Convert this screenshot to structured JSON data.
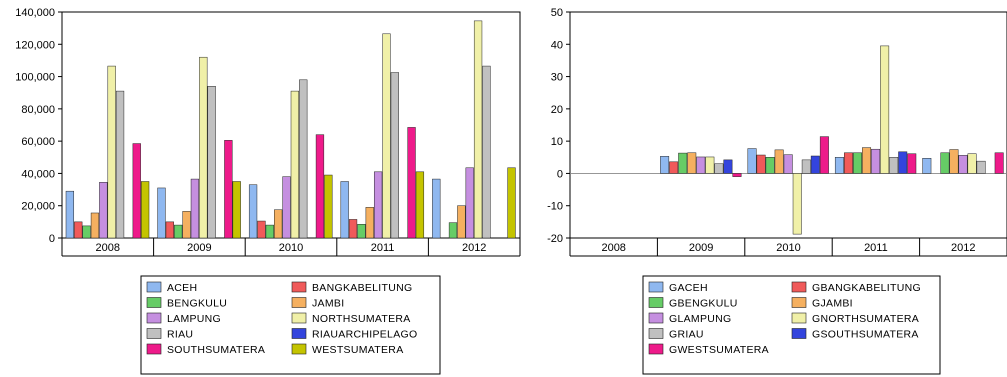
{
  "chart_data": [
    {
      "type": "bar",
      "categories": [
        "2008",
        "2009",
        "2010",
        "2011",
        "2012"
      ],
      "ylim": [
        0,
        140000
      ],
      "yticks": [
        0,
        20000,
        40000,
        60000,
        80000,
        100000,
        120000,
        140000
      ],
      "ytick_labels": [
        "0",
        "20,000",
        "40,000",
        "60,000",
        "80,000",
        "100,000",
        "120,000",
        "140,000"
      ],
      "grid": false,
      "legend_position": "bottom",
      "series": [
        {
          "name": "ACEH",
          "color": "#8fb8f0",
          "values": [
            29000,
            31000,
            33000,
            35000,
            36500
          ]
        },
        {
          "name": "BANGKABELITUNG",
          "color": "#f05a5a",
          "values": [
            10000,
            10000,
            10500,
            11500,
            null
          ]
        },
        {
          "name": "BENGKULU",
          "color": "#66cc66",
          "values": [
            7500,
            8000,
            8000,
            8500,
            9500
          ]
        },
        {
          "name": "JAMBI",
          "color": "#f5b060",
          "values": [
            15500,
            16500,
            17500,
            19000,
            20000
          ]
        },
        {
          "name": "LAMPUNG",
          "color": "#c58fe0",
          "values": [
            34500,
            36500,
            38000,
            41000,
            43500
          ]
        },
        {
          "name": "NORTHSUMATERA",
          "color": "#f0f0a8",
          "values": [
            106500,
            112000,
            91000,
            126500,
            134500
          ]
        },
        {
          "name": "RIAU",
          "color": "#c0c0c0",
          "values": [
            91000,
            94000,
            98000,
            102500,
            106500
          ]
        },
        {
          "name": "RIAUARCHIPELAGO",
          "color": "#3344dd",
          "values": [
            null,
            null,
            null,
            null,
            null
          ]
        },
        {
          "name": "SOUTHSUMATERA",
          "color": "#ee1a8a",
          "values": [
            58500,
            60500,
            64000,
            68500,
            null
          ]
        },
        {
          "name": "WESTSUMATERA",
          "color": "#c4c400",
          "values": [
            35000,
            35000,
            39000,
            41000,
            43500
          ]
        }
      ]
    },
    {
      "type": "bar",
      "categories": [
        "2008",
        "2009",
        "2010",
        "2011",
        "2012"
      ],
      "ylim": [
        -20,
        50
      ],
      "yticks": [
        -20,
        -10,
        0,
        10,
        20,
        30,
        40,
        50
      ],
      "ytick_labels": [
        "-20",
        "-10",
        "0",
        "10",
        "20",
        "30",
        "40",
        "50"
      ],
      "zero_line": true,
      "grid": false,
      "legend_position": "bottom",
      "series": [
        {
          "name": "GACEH",
          "color": "#8fb8f0",
          "values": [
            null,
            5.3,
            7.7,
            5.0,
            4.7
          ]
        },
        {
          "name": "GBANGKABELITUNG",
          "color": "#f05a5a",
          "values": [
            null,
            3.6,
            5.7,
            6.4,
            null
          ]
        },
        {
          "name": "GBENGKULU",
          "color": "#66cc66",
          "values": [
            null,
            6.3,
            5.0,
            6.4,
            6.4
          ]
        },
        {
          "name": "GJAMBI",
          "color": "#f5b060",
          "values": [
            null,
            6.4,
            7.3,
            8.0,
            7.4
          ]
        },
        {
          "name": "GLAMPUNG",
          "color": "#c58fe0",
          "values": [
            null,
            5.1,
            5.8,
            7.5,
            5.6
          ]
        },
        {
          "name": "GNORTHSUMATERA",
          "color": "#f0f0a8",
          "values": [
            null,
            5.1,
            -18.8,
            39.5,
            6.1
          ]
        },
        {
          "name": "GRIAU",
          "color": "#c0c0c0",
          "values": [
            null,
            3.0,
            4.2,
            5.0,
            3.8
          ]
        },
        {
          "name": "GSOUTHSUMATERA",
          "color": "#3344dd",
          "values": [
            null,
            4.2,
            5.4,
            6.7,
            null
          ]
        },
        {
          "name": "GWESTSUMATERA",
          "color": "#ee1a8a",
          "values": [
            null,
            -1.0,
            11.4,
            6.1,
            6.4
          ]
        }
      ]
    }
  ]
}
